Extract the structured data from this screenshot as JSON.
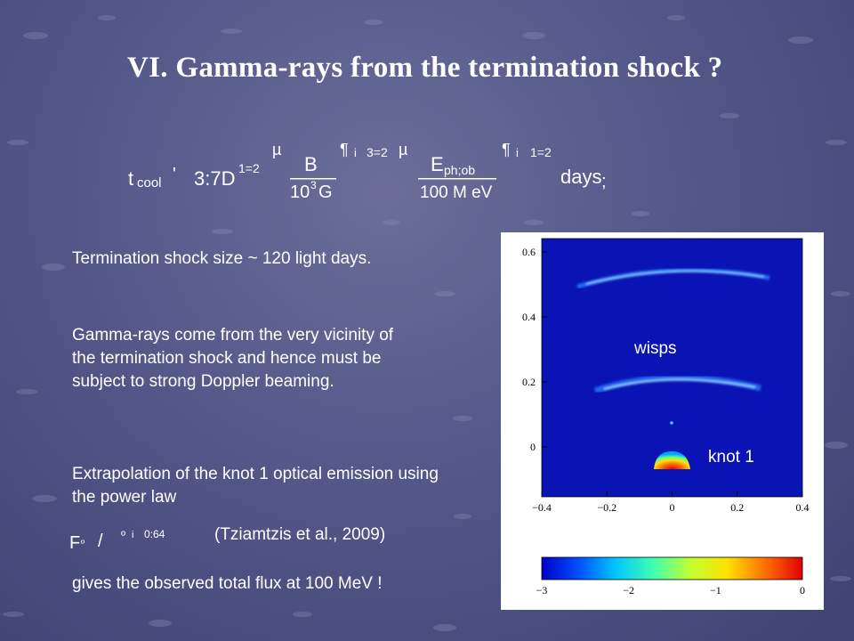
{
  "slide": {
    "title": "VI. Gamma-rays  from the termination  shock  ?",
    "paragraphs": [
      "Termination shock size ~ 120 light days.",
      "Gamma-rays come from the very vicinity of the termination shock and hence must be subject to strong Doppler beaming.",
      "Extrapolation of the knot 1 optical emission using the power law",
      "gives the observed total flux at 100 MeV !"
    ],
    "citation": "(Tziamtzis et al., 2009)"
  },
  "equation": {
    "lhs": "t",
    "lhs_sub": "cool",
    "approx": "'",
    "coef": "3:7D",
    "coef_exp": "1=2",
    "paren_top_1": "µ",
    "frac1_num": "B",
    "frac1_den_base": "10",
    "frac1_den_exp": "3",
    "frac1_den_unit": "G",
    "paren_close_1": "¶",
    "exp1_sign": "i",
    "exp1": "3=2",
    "paren_top_2": "µ",
    "frac2_num_base": "E",
    "frac2_num_sub": "ph;ob",
    "frac2_den": "100 M eV",
    "paren_close_2": "¶",
    "exp2_sign": "i",
    "exp2": "1=2",
    "unit": "days",
    "trail": ";"
  },
  "powerlaw": {
    "lhs": "F",
    "lhs_sub": "º",
    "prop": "/",
    "rhs": "º",
    "exp_sign": "i",
    "exp": "0:64"
  },
  "figure": {
    "labels": {
      "wisps": "wisps",
      "knot": "knot 1"
    },
    "x_ticks": [
      "−0.4",
      "−0.2",
      "0",
      "0.2",
      "0.4"
    ],
    "y_ticks": [
      "0.6",
      "0.4",
      "0.2",
      "0"
    ],
    "colorbar_ticks": [
      "−3",
      "−2",
      "−1",
      "0"
    ],
    "colorbar_colors": [
      "#0000c8",
      "#0050ff",
      "#00c8ff",
      "#40ffb0",
      "#c0ff30",
      "#ffe000",
      "#ff7000",
      "#e00000"
    ],
    "map_background": "#0a14b4"
  }
}
